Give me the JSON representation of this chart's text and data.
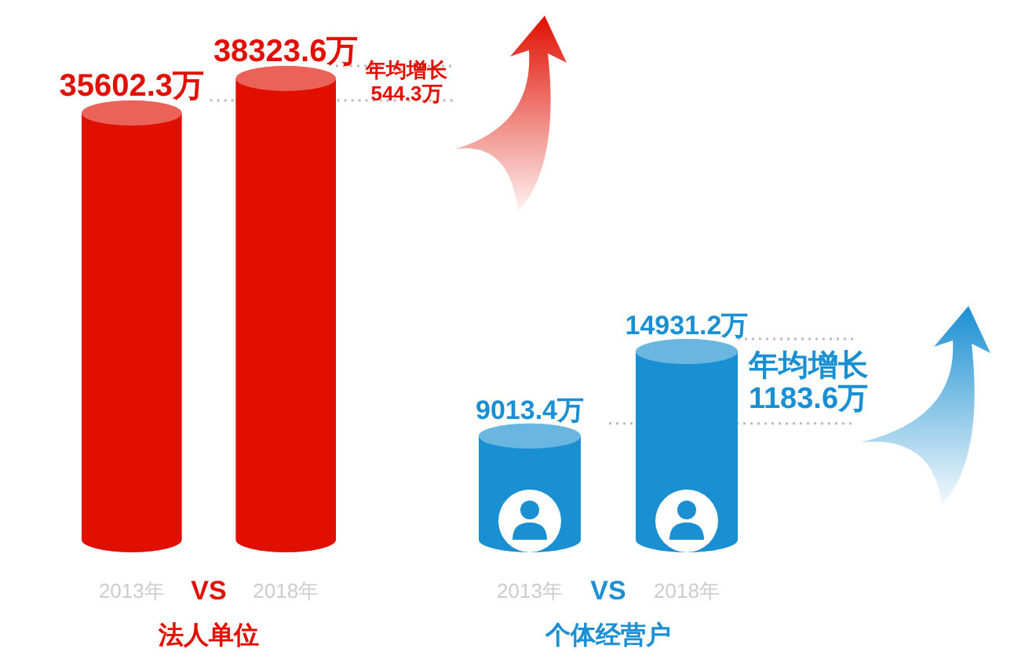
{
  "chart_data": [
    {
      "type": "bar",
      "categories": [
        "2013年",
        "2018年"
      ],
      "values": [
        35602.3,
        38323.6
      ],
      "value_labels": [
        "35602.3万",
        "38323.6万"
      ],
      "color": "#e00f00",
      "xlabel": "法人单位",
      "annotations": [
        "VS",
        "年均增长 544.3万"
      ],
      "ref_lines": [
        {
          "axis": "y",
          "value": 35602.3,
          "color": "#bbbbbb",
          "line_style": "dotted"
        },
        {
          "axis": "y",
          "value": 38323.6,
          "color": "#bbbbbb",
          "line_style": "dotted"
        }
      ]
    },
    {
      "type": "bar",
      "categories": [
        "2013年",
        "2018年"
      ],
      "values": [
        9013.4,
        14931.2
      ],
      "value_labels": [
        "9013.4万",
        "14931.2万"
      ],
      "color": "#1a8fd2",
      "xlabel": "个体经营户",
      "annotations": [
        "VS",
        "年均增长 1183.6万"
      ],
      "ref_lines": [
        {
          "axis": "y",
          "value": 9013.4,
          "color": "#bbbbbb",
          "line_style": "dotted"
        },
        {
          "axis": "y",
          "value": 14931.2,
          "color": "#bbbbbb",
          "line_style": "dotted"
        }
      ]
    }
  ]
}
